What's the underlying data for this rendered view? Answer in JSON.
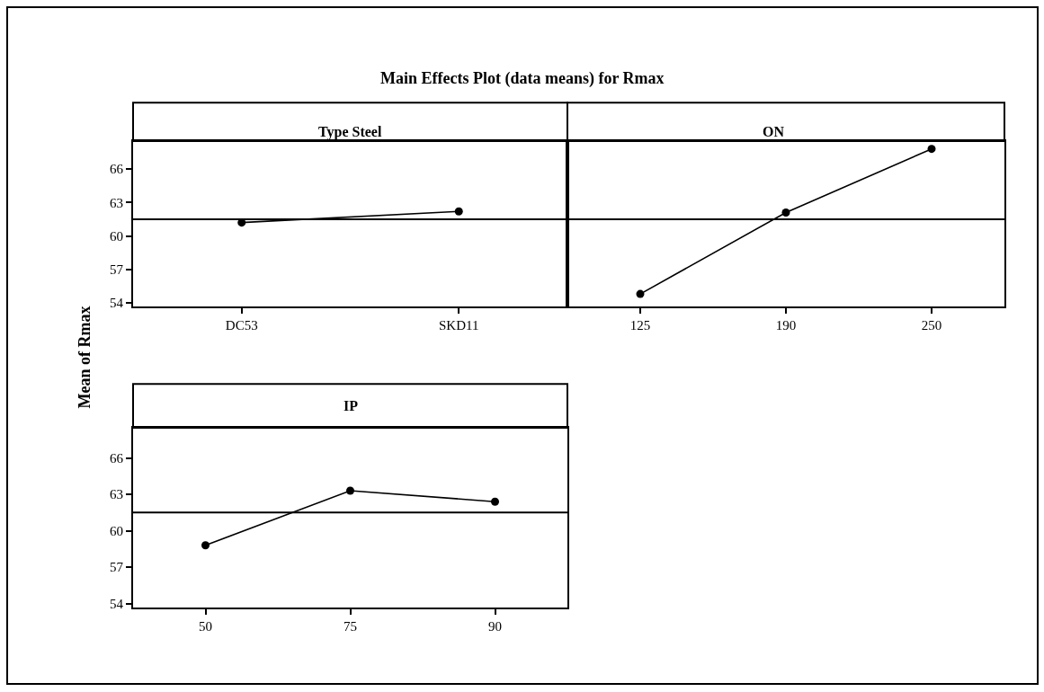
{
  "chart_data": [
    {
      "type": "line",
      "title": "Type Steel",
      "ylabel": "Mean of Rmax",
      "annotations": [
        "Main Effects Plot (data means) for Rmax"
      ],
      "categories": [
        "DC53",
        "SKD11"
      ],
      "values": [
        61.2,
        62.2
      ],
      "color": "#000000",
      "marker": "circle",
      "line_style": "solid",
      "ylim": [
        53.7,
        68.5
      ],
      "yticks": [
        54,
        57,
        60,
        63,
        66
      ],
      "ref_lines": [
        {
          "axis": "y",
          "value": 61.5,
          "color": "#000000"
        }
      ],
      "grid": false
    },
    {
      "type": "line",
      "title": "ON",
      "categories": [
        "125",
        "190",
        "250"
      ],
      "values": [
        54.8,
        62.1,
        67.8
      ],
      "color": "#000000",
      "marker": "circle",
      "line_style": "solid",
      "ylim": [
        53.7,
        68.5
      ],
      "yticks": [
        54,
        57,
        60,
        63,
        66
      ],
      "tick_labels": "x",
      "ref_lines": [
        {
          "axis": "y",
          "value": 61.5,
          "color": "#000000"
        }
      ],
      "grid": false
    },
    {
      "type": "line",
      "title": "IP",
      "categories": [
        "50",
        "75",
        "90"
      ],
      "values": [
        58.8,
        63.3,
        62.4
      ],
      "color": "#000000",
      "marker": "circle",
      "line_style": "solid",
      "ylim": [
        53.7,
        68.5
      ],
      "yticks": [
        54,
        57,
        60,
        63,
        66
      ],
      "ref_lines": [
        {
          "axis": "y",
          "value": 61.5,
          "color": "#000000"
        }
      ],
      "grid": false
    }
  ]
}
